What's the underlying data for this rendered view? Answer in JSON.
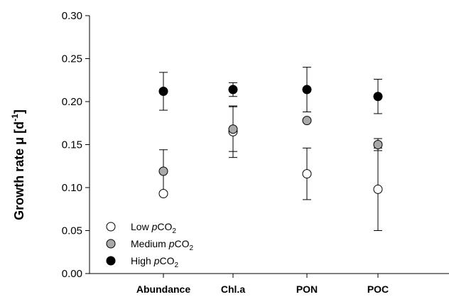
{
  "chart_data": {
    "type": "scatter",
    "title": "",
    "xlabel": "",
    "ylabel": {
      "main": "Growth rate μ [d",
      "sup": "-1",
      "end": "]"
    },
    "ylim": [
      0,
      0.3
    ],
    "y_ticks": [
      "0.00",
      "0.05",
      "0.10",
      "0.15",
      "0.20",
      "0.25",
      "0.30"
    ],
    "categories": [
      "Abundance",
      "Chl.a",
      "PON",
      "POC"
    ],
    "grid": false,
    "legend_position": "bottom-left",
    "series": [
      {
        "name_parts": [
          "Low ",
          "p",
          "CO",
          "2"
        ],
        "fill": "#ffffff",
        "values": [
          0.093,
          0.165,
          0.116,
          0.098
        ],
        "error": [
          0.0,
          0.03,
          0.03,
          0.048
        ]
      },
      {
        "name_parts": [
          "Medium ",
          "p",
          "CO",
          "2"
        ],
        "fill": "#a9a9a9",
        "values": [
          0.119,
          0.168,
          0.178,
          0.15
        ],
        "error": [
          0.025,
          0.026,
          0.0,
          0.007
        ]
      },
      {
        "name_parts": [
          "High ",
          "p",
          "CO",
          "2"
        ],
        "fill": "#000000",
        "values": [
          0.212,
          0.214,
          0.214,
          0.206
        ],
        "error": [
          0.022,
          0.008,
          0.026,
          0.02
        ]
      }
    ]
  }
}
